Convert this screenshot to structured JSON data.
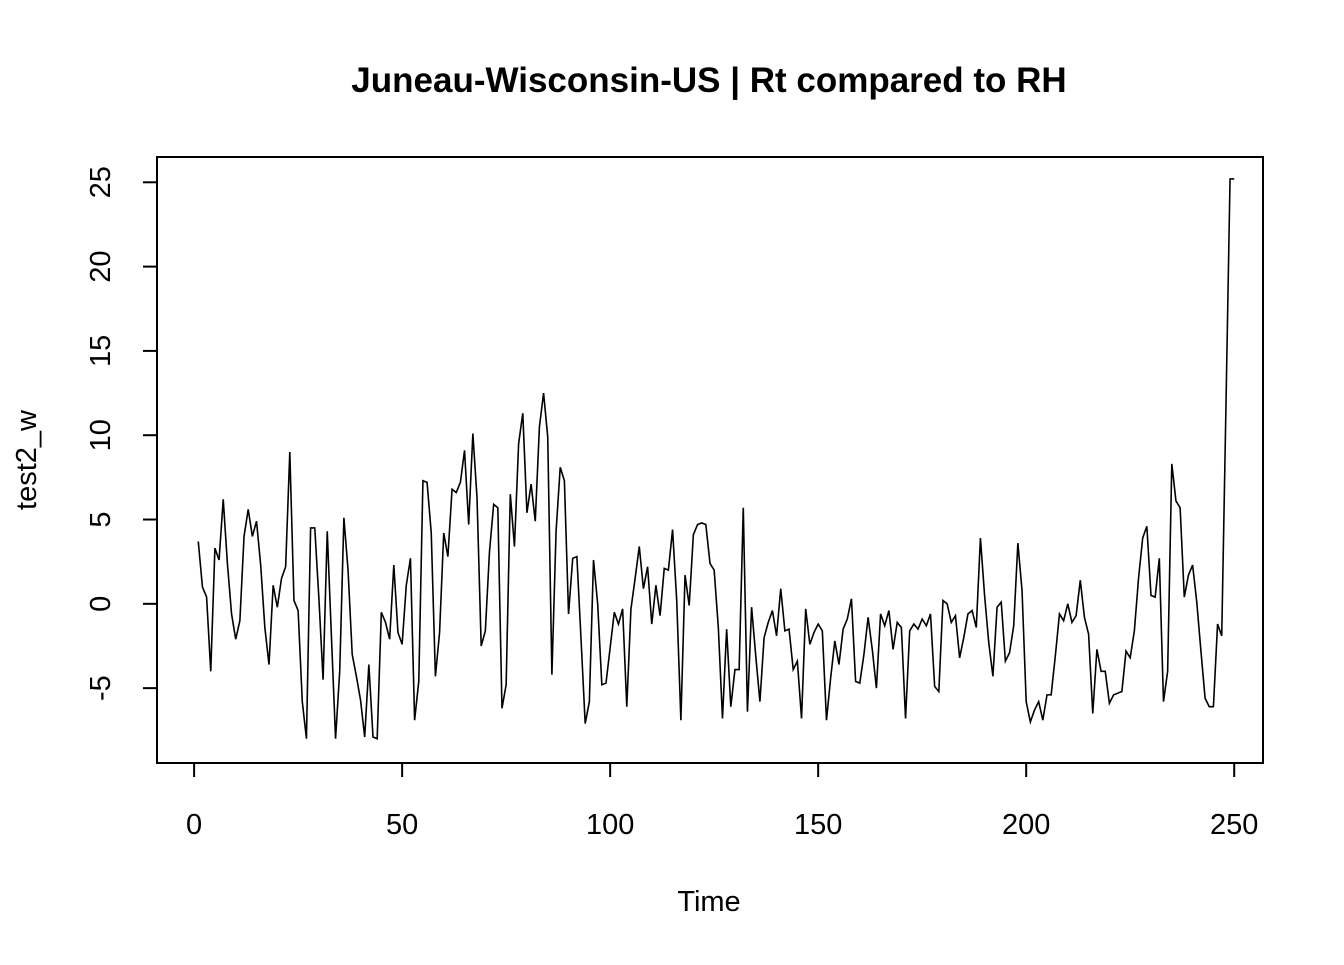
{
  "chart_data": {
    "type": "line",
    "title": "Juneau-Wisconsin-US | Rt compared to RH",
    "xlabel": "Time",
    "ylabel": "test2_w",
    "xlim": [
      -8.92,
      256.92
    ],
    "ylim": [
      -9.44,
      26.5
    ],
    "xticks": [
      0,
      50,
      100,
      150,
      200,
      250
    ],
    "yticks": [
      -5,
      0,
      5,
      10,
      15,
      20,
      25
    ],
    "grid": false,
    "legend": false,
    "line_color": "#000000",
    "series": [
      {
        "x_start": 1,
        "values": [
          3.7,
          1.0,
          0.4,
          -4.0,
          3.3,
          2.6,
          6.2,
          2.4,
          -0.6,
          -2.1,
          -1.0,
          4.0,
          5.6,
          4.0,
          4.9,
          2.3,
          -1.4,
          -3.6,
          1.1,
          -0.2,
          1.5,
          2.2,
          9.0,
          0.2,
          -0.4,
          -5.8,
          -8.0,
          4.5,
          4.5,
          0.3,
          -4.5,
          4.3,
          -1.9,
          -8.0,
          -4.0,
          5.1,
          2.0,
          -3.0,
          -4.3,
          -5.7,
          -7.9,
          -3.6,
          -7.9,
          -8.0,
          -0.5,
          -1.1,
          -2.1,
          2.3,
          -1.7,
          -2.4,
          1.1,
          2.7,
          -6.9,
          -4.6,
          7.3,
          7.2,
          4.2,
          -4.3,
          -1.7,
          4.2,
          2.8,
          6.8,
          6.6,
          7.2,
          9.1,
          4.7,
          10.1,
          6.3,
          -2.5,
          -1.6,
          3.1,
          5.9,
          5.7,
          -6.2,
          -4.8,
          6.5,
          3.4,
          9.5,
          11.3,
          5.4,
          7.1,
          4.9,
          10.5,
          12.5,
          9.9,
          -4.2,
          4.3,
          8.1,
          7.3,
          -0.6,
          2.7,
          2.8,
          -2.1,
          -7.1,
          -5.8,
          2.6,
          0.0,
          -4.8,
          -4.7,
          -2.6,
          -0.5,
          -1.2,
          -0.3,
          -6.1,
          -0.3,
          1.5,
          3.4,
          0.9,
          2.2,
          -1.2,
          1.1,
          -0.7,
          2.1,
          2.0,
          4.4,
          0.2,
          -6.9,
          1.7,
          -0.1,
          4.1,
          4.7,
          4.8,
          4.7,
          2.4,
          2.0,
          -1.4,
          -6.8,
          -1.5,
          -6.1,
          -3.9,
          -3.9,
          5.7,
          -6.4,
          -0.2,
          -3.1,
          -5.8,
          -2.0,
          -1.1,
          -0.4,
          -1.9,
          0.9,
          -1.6,
          -1.5,
          -3.9,
          -3.4,
          -6.8,
          -0.3,
          -2.4,
          -1.7,
          -1.2,
          -1.6,
          -6.9,
          -4.4,
          -2.2,
          -3.6,
          -1.5,
          -0.9,
          0.3,
          -4.6,
          -4.7,
          -3.0,
          -0.8,
          -2.7,
          -5.0,
          -0.6,
          -1.3,
          -0.4,
          -2.7,
          -1.1,
          -1.4,
          -6.8,
          -1.6,
          -1.2,
          -1.5,
          -0.9,
          -1.3,
          -0.6,
          -4.9,
          -5.2,
          0.2,
          0.0,
          -1.1,
          -0.7,
          -3.2,
          -2.0,
          -0.6,
          -0.4,
          -1.4,
          3.9,
          0.5,
          -2.3,
          -4.3,
          -0.2,
          0.1,
          -3.4,
          -2.9,
          -1.3,
          3.6,
          0.8,
          -5.8,
          -7.0,
          -6.3,
          -5.8,
          -6.9,
          -5.4,
          -5.4,
          -3.1,
          -0.6,
          -1.0,
          0.0,
          -1.1,
          -0.7,
          1.4,
          -0.8,
          -1.8,
          -6.5,
          -2.7,
          -4.0,
          -4.0,
          -5.9,
          -5.4,
          -5.3,
          -5.2,
          -2.8,
          -3.2,
          -1.6,
          1.5,
          3.9,
          4.6,
          0.5,
          0.4,
          2.7,
          -5.8,
          -4.0,
          8.3,
          6.1,
          5.7,
          0.4,
          1.7,
          2.3,
          0.1,
          -2.8,
          -5.6,
          -6.1,
          -6.1,
          -1.2,
          -1.9,
          11.5,
          25.2,
          25.2
        ]
      }
    ]
  }
}
